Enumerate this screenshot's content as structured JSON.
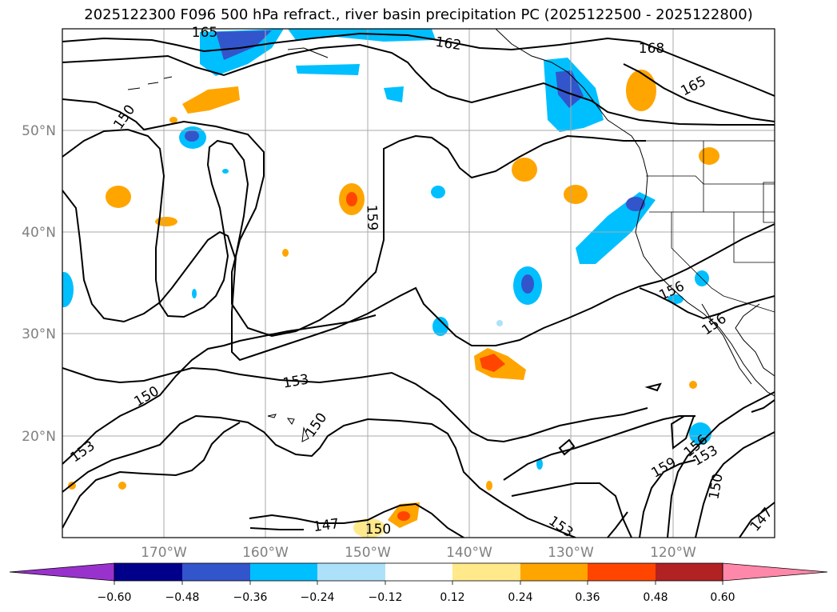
{
  "title": "2025122300 F096 500 hPa refract., river basin precipitation PC (2025122500 - 2025122800)",
  "map": {
    "lat_labels": [
      "50°N",
      "40°N",
      "30°N",
      "20°N"
    ],
    "lon_labels": [
      "170°W",
      "160°W",
      "150°W",
      "140°W",
      "130°W",
      "120°W"
    ],
    "gridlines": true,
    "contour_labels": [
      "165",
      "162",
      "168",
      "165",
      "150",
      "159",
      "156",
      "156",
      "153",
      "150",
      "150",
      "153",
      "147",
      "150",
      "153",
      "159",
      "156",
      "153",
      "150",
      "147"
    ]
  },
  "colorbar": {
    "colors": [
      "#9932CC",
      "#00008B",
      "#3355CC",
      "#00BFFF",
      "#ADE1FA",
      "#FFFFFF",
      "#FFE98A",
      "#FFA500",
      "#FF4500",
      "#B22222",
      "#FF88AA"
    ],
    "tick_labels": [
      "−0.60",
      "−0.48",
      "−0.36",
      "−0.24",
      "−0.12",
      "0.12",
      "0.24",
      "0.36",
      "0.48",
      "0.60"
    ]
  }
}
